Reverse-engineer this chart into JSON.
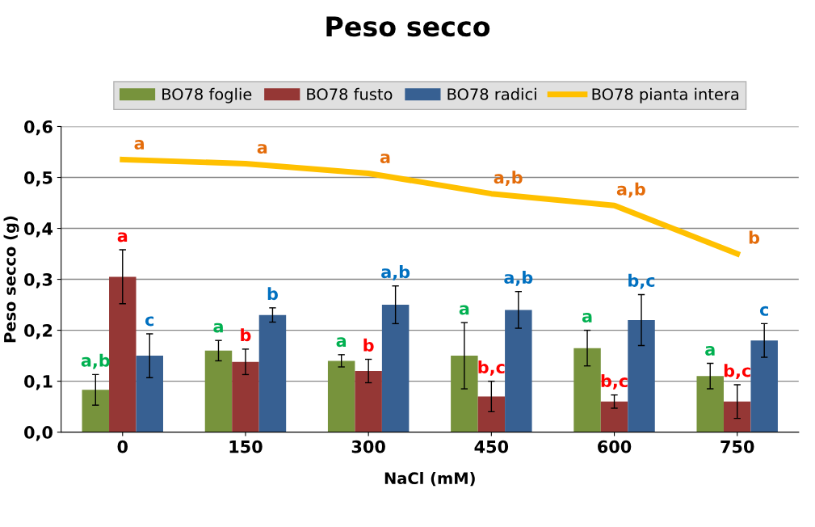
{
  "chart_data": {
    "type": "bar",
    "title": "Peso secco",
    "xlabel": "NaCl (mM)",
    "ylabel": "Peso secco (g)",
    "categories": [
      "0",
      "150",
      "300",
      "450",
      "600",
      "750"
    ],
    "series": [
      {
        "name": "BO78 foglie",
        "color": "#77933c",
        "values": [
          0.083,
          0.16,
          0.14,
          0.15,
          0.165,
          0.11
        ],
        "errors": [
          0.03,
          0.02,
          0.012,
          0.065,
          0.035,
          0.025
        ],
        "value_labels": [
          "a,b",
          "a",
          "a",
          "a",
          "a",
          "a"
        ]
      },
      {
        "name": "BO78 fusto",
        "color": "#953735",
        "values": [
          0.305,
          0.138,
          0.12,
          0.07,
          0.06,
          0.06
        ],
        "errors": [
          0.053,
          0.025,
          0.023,
          0.03,
          0.013,
          0.033
        ],
        "value_labels": [
          "a",
          "b",
          "b",
          "b,c",
          "b,c",
          "b,c"
        ]
      },
      {
        "name": "BO78 radici",
        "color": "#376092",
        "values": [
          0.15,
          0.23,
          0.25,
          0.24,
          0.22,
          0.18
        ],
        "errors": [
          0.043,
          0.014,
          0.037,
          0.036,
          0.05,
          0.033
        ],
        "value_labels": [
          "c",
          "b",
          "a,b",
          "a,b",
          "b,c",
          "c"
        ]
      },
      {
        "name": "BO78 pianta intera",
        "type": "line",
        "color": "#ffc000",
        "values": [
          0.535,
          0.527,
          0.508,
          0.468,
          0.445,
          0.35
        ],
        "value_labels": [
          "a",
          "a",
          "a",
          "a,b",
          "a,b",
          "b"
        ]
      }
    ],
    "ylim": [
      0,
      0.6
    ],
    "yticks": [
      {
        "value": 0,
        "label": "0,0"
      },
      {
        "value": 0.1,
        "label": "0,1"
      },
      {
        "value": 0.2,
        "label": "0,2"
      },
      {
        "value": 0.3,
        "label": "0,3"
      },
      {
        "value": 0.4,
        "label": "0,4"
      },
      {
        "value": 0.5,
        "label": "0,5"
      },
      {
        "value": 0.6,
        "label": "0,6"
      }
    ],
    "grid": "y",
    "legend": "top"
  }
}
